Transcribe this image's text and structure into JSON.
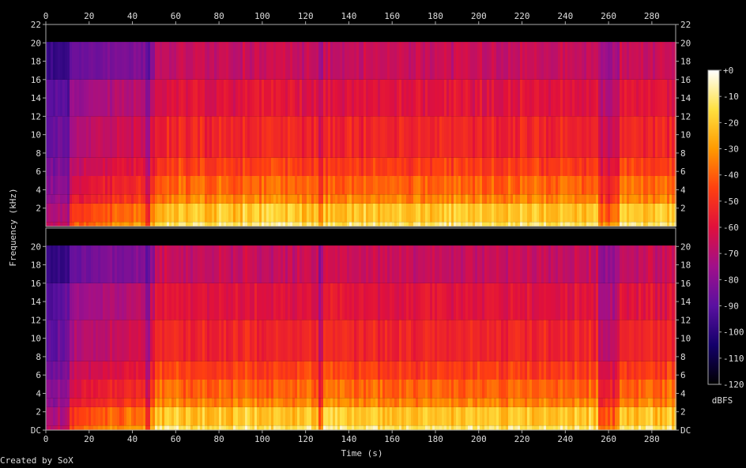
{
  "chart_data": [
    {
      "type": "heatmap",
      "name": "channel-1",
      "xlim": [
        0,
        291
      ],
      "ylim": [
        0,
        22
      ],
      "x_ticks": [
        0,
        20,
        40,
        60,
        80,
        100,
        120,
        140,
        160,
        180,
        200,
        220,
        240,
        260,
        280
      ],
      "y_ticks": [
        2,
        4,
        6,
        8,
        10,
        12,
        14,
        16,
        18,
        20,
        22
      ],
      "y_tick_labels": [
        "2",
        "4",
        "6",
        "8",
        "10",
        "12",
        "14",
        "16",
        "18",
        "20",
        "22"
      ],
      "grid": false
    },
    {
      "type": "heatmap",
      "name": "channel-2",
      "xlim": [
        0,
        291
      ],
      "ylim": [
        0,
        22
      ],
      "x_ticks": [
        0,
        20,
        40,
        60,
        80,
        100,
        120,
        140,
        160,
        180,
        200,
        220,
        240,
        260,
        280
      ],
      "y_ticks": [
        0,
        2,
        4,
        6,
        8,
        10,
        12,
        14,
        16,
        18,
        20
      ],
      "y_tick_labels": [
        "DC",
        "2",
        "4",
        "6",
        "8",
        "10",
        "12",
        "14",
        "16",
        "18",
        "20"
      ],
      "grid": false
    }
  ],
  "labels": {
    "xlabel": "Time (s)",
    "ylabel": "Frequency (kHz)",
    "colorbar_label": "dBFS",
    "credit": "Created by SoX"
  },
  "colorbar": {
    "range": [
      -120,
      0
    ],
    "ticks": [
      0,
      -10,
      -20,
      -30,
      -40,
      -50,
      -60,
      -70,
      -80,
      -90,
      -100,
      -110,
      -120
    ],
    "tick_labels": [
      "+0",
      "-10",
      "-20",
      "-30",
      "-40",
      "-50",
      "-60",
      "-70",
      "-80",
      "-90",
      "-100",
      "-110",
      "-120"
    ],
    "stops": [
      "#000000",
      "#14006a",
      "#5a10a0",
      "#a0108a",
      "#e0103c",
      "#ff4010",
      "#ff9a00",
      "#ffe040",
      "#ffffff"
    ]
  },
  "loud_region_start_s": 50,
  "quiet_segments_s": [
    [
      45,
      48
    ],
    [
      125,
      128
    ],
    [
      255,
      265
    ]
  ]
}
